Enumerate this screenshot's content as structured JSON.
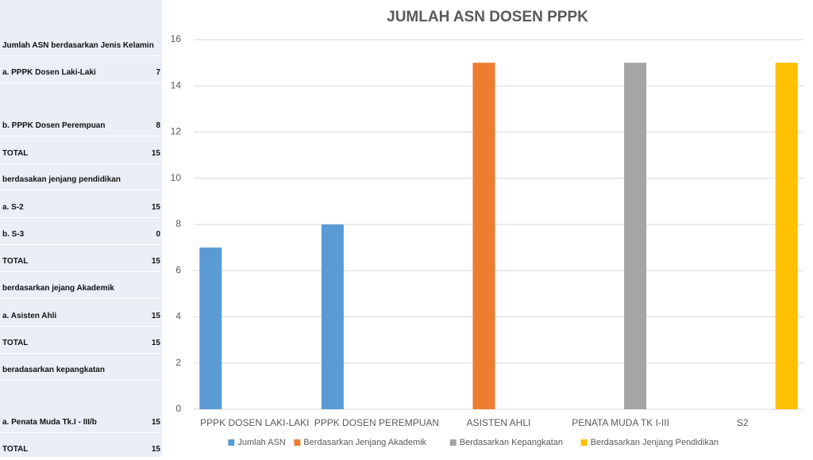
{
  "table": {
    "rows": [
      {
        "label": "Jumlah ASN berdasarkan Jenis Kelamin"
      },
      {
        "label": "a. PPPK Dosen Laki-Laki",
        "value": 7
      },
      {
        "label": "b. PPPK Dosen Perempuan",
        "value": 8
      },
      {
        "label": "TOTAL",
        "value": 15
      },
      {
        "label": "berdasakan jenjang pendidikan"
      },
      {
        "label": "a. S-2",
        "value": 15
      },
      {
        "label": "b. S-3",
        "value": 0
      },
      {
        "label": "TOTAL",
        "value": 15
      },
      {
        "label": "berdasarkan jejang Akademik"
      },
      {
        "label": "a. Asisten Ahli",
        "value": 15
      },
      {
        "label": "TOTAL",
        "value": 15
      },
      {
        "label": "beradasarkan kepangkatan"
      },
      {
        "label": "a. Penata Muda Tk.I - III/b",
        "value": 15
      },
      {
        "label": "TOTAL",
        "value": 15
      }
    ]
  },
  "chart_data": {
    "type": "bar",
    "title": "JUMLAH ASN DOSEN PPPK",
    "categories": [
      "PPPK DOSEN LAKI-LAKI",
      "PPPK DOSEN PEREMPUAN",
      "ASISTEN AHLI",
      "PENATA MUDA TK I-III",
      "S2"
    ],
    "series": [
      {
        "name": "Jumlah ASN",
        "color": "#5b9bd5",
        "values": [
          7,
          8,
          null,
          null,
          null
        ]
      },
      {
        "name": "Berdasarkan Jenjang Akademik",
        "color": "#ed7d31",
        "values": [
          null,
          null,
          15,
          null,
          null
        ]
      },
      {
        "name": "Berdasarkan Kepangkatan",
        "color": "#a5a5a5",
        "values": [
          null,
          null,
          null,
          15,
          null
        ]
      },
      {
        "name": "Berdasarkan Jenjang Pendidikan",
        "color": "#ffc000",
        "values": [
          null,
          null,
          null,
          null,
          15
        ]
      }
    ],
    "ylim": [
      0,
      16
    ],
    "yticks": [
      0,
      2,
      4,
      6,
      8,
      10,
      12,
      14,
      16
    ],
    "grid": true,
    "legend": "bottom"
  }
}
